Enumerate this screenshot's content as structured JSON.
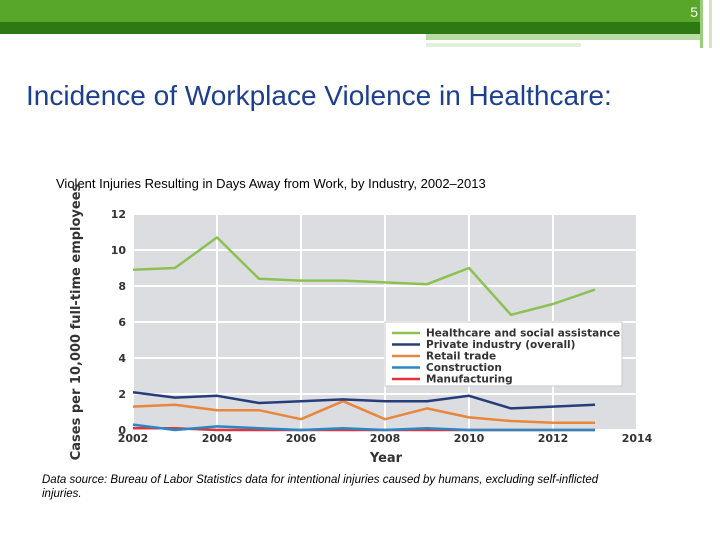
{
  "slide": {
    "number": "5",
    "title": "Incidence of Workplace Violence in Healthcare:"
  },
  "chart_data": {
    "type": "line",
    "title": "Violent Injuries Resulting in Days Away from Work, by Industry,  2002–2013",
    "xlabel": "Year",
    "ylabel": "Cases per 10,000 full-time employees",
    "xlim": [
      2002,
      2014
    ],
    "ylim": [
      0,
      12
    ],
    "x_ticks": [
      "2002",
      "2004",
      "2006",
      "2008",
      "2010",
      "2012",
      "2014"
    ],
    "y_ticks": [
      "0",
      "2",
      "4",
      "6",
      "8",
      "10",
      "12"
    ],
    "grid": true,
    "legend_position": "right",
    "x": [
      2002,
      2003,
      2004,
      2005,
      2006,
      2007,
      2008,
      2009,
      2010,
      2011,
      2012,
      2013
    ],
    "series": [
      {
        "name": "Healthcare and social assistance",
        "color": "#8cc152",
        "values": [
          8.9,
          9.0,
          10.7,
          8.4,
          8.3,
          8.3,
          8.2,
          8.1,
          9.0,
          6.4,
          7.0,
          7.8
        ]
      },
      {
        "name": "Private industry (overall)",
        "color": "#253d7a",
        "values": [
          2.1,
          1.8,
          1.9,
          1.5,
          1.6,
          1.7,
          1.6,
          1.6,
          1.9,
          1.2,
          1.3,
          1.4
        ]
      },
      {
        "name": "Retail trade",
        "color": "#e8863c",
        "values": [
          1.3,
          1.4,
          1.1,
          1.1,
          0.6,
          1.6,
          0.6,
          1.2,
          0.7,
          0.5,
          0.4,
          0.4
        ]
      },
      {
        "name": "Construction",
        "color": "#2a87c4",
        "values": [
          0.3,
          0.0,
          0.2,
          0.1,
          0.0,
          0.1,
          0.0,
          0.1,
          0.0,
          0.0,
          0.0,
          0.0
        ]
      },
      {
        "name": "Manufacturing",
        "color": "#e0343a",
        "values": [
          0.1,
          0.1,
          0.0,
          0.0,
          0.0,
          0.0,
          0.0,
          0.0,
          0.0,
          0.0,
          0.0,
          0.0
        ]
      }
    ]
  },
  "footer": {
    "data_source": "Data source: Bureau of Labor Statistics data for intentional injuries caused by humans, excluding self-inflicted injuries."
  }
}
